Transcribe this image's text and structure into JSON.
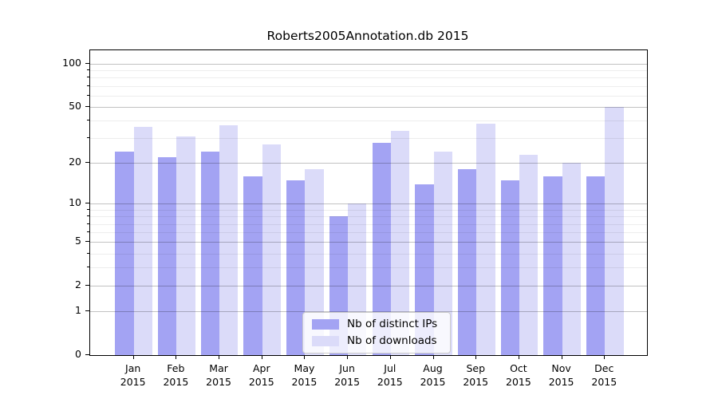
{
  "title": "Roberts2005Annotation.db 2015",
  "legend": {
    "items": [
      {
        "label": "Nb of distinct IPs",
        "color": "#a3a3f3"
      },
      {
        "label": "Nb of downloads",
        "color": "#dbdbf9"
      }
    ]
  },
  "axes": {
    "y_tick_labels": [
      "100",
      "50",
      "20",
      "10",
      "5",
      "2",
      "1",
      "0"
    ],
    "x_tick_year": "2015"
  },
  "chart_data": {
    "type": "bar",
    "title": "Roberts2005Annotation.db 2015",
    "categories": [
      "Jan",
      "Feb",
      "Mar",
      "Apr",
      "May",
      "Jun",
      "Jul",
      "Aug",
      "Sep",
      "Oct",
      "Nov",
      "Dec"
    ],
    "category_year": "2015",
    "series": [
      {
        "name": "Nb of distinct IPs",
        "color": "#a3a3f3",
        "values": [
          24,
          22,
          24,
          16,
          15,
          8,
          28,
          14,
          18,
          15,
          16,
          16
        ]
      },
      {
        "name": "Nb of downloads",
        "color": "#dbdbf9",
        "values": [
          36,
          31,
          37,
          27,
          18,
          10,
          34,
          24,
          38,
          23,
          20,
          50
        ]
      }
    ],
    "yscale": "log1p",
    "ylim": [
      0,
      124
    ],
    "yticks": [
      0,
      1,
      2,
      5,
      10,
      20,
      50,
      100
    ],
    "yticks_minor": [
      3,
      4,
      6,
      7,
      8,
      9,
      30,
      40,
      60,
      70,
      80,
      90
    ],
    "grid": true,
    "legend_position": "lower center"
  }
}
